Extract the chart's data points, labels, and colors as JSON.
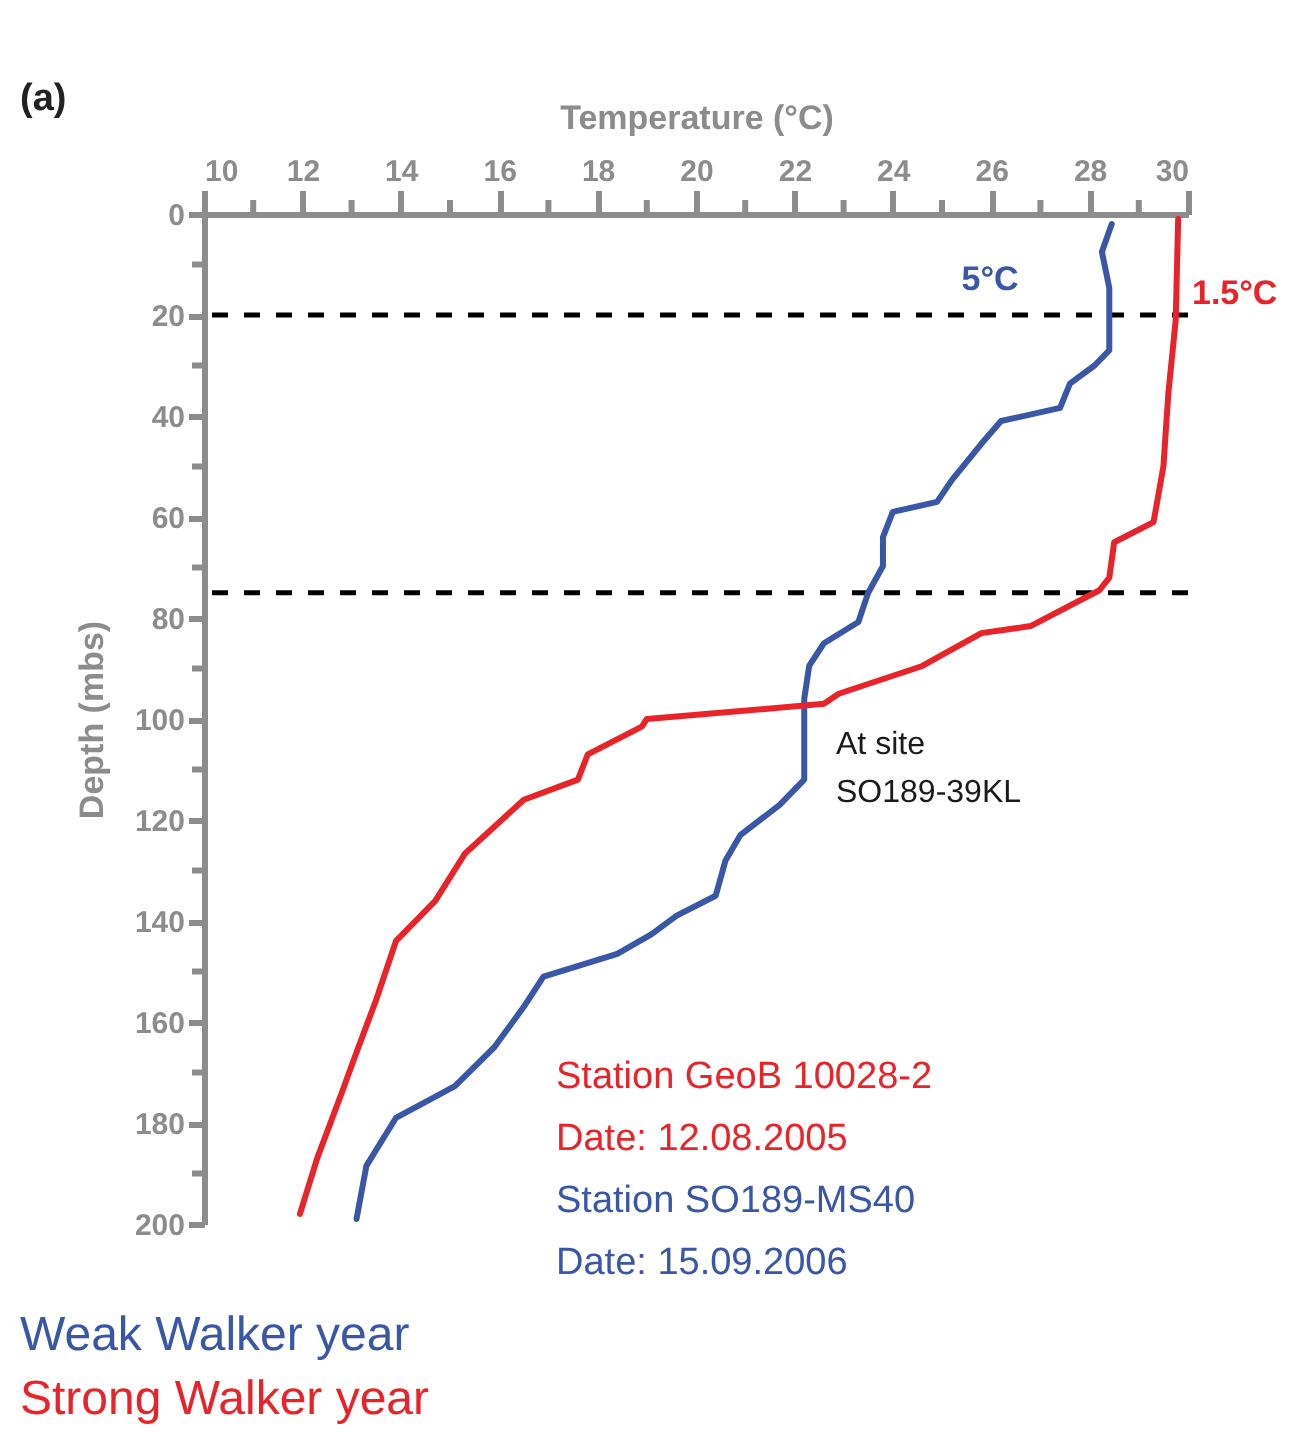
{
  "chart_data": {
    "type": "line",
    "title": "(a)",
    "xlabel": "Temperature (°C)",
    "ylabel": "Depth (mbs)",
    "xlim": [
      10,
      30
    ],
    "xticks": [
      10,
      {
        "value": 11,
        "label": null
      },
      12,
      {
        "value": 13,
        "label": null
      },
      14,
      {
        "value": 15,
        "label": null
      },
      16,
      {
        "value": 17,
        "label": null
      },
      18,
      {
        "value": 19,
        "label": null
      },
      20,
      {
        "value": 21,
        "label": null
      },
      22,
      {
        "value": 23,
        "label": null
      },
      24,
      {
        "value": 25,
        "label": null
      },
      26,
      {
        "value": 27,
        "label": null
      },
      28,
      {
        "value": 29,
        "label": null
      },
      30
    ],
    "ylim": [
      200,
      0
    ],
    "yticks": [
      0,
      {
        "value": 10,
        "label": null
      },
      20,
      {
        "value": 30,
        "label": null
      },
      40,
      {
        "value": 50,
        "label": null
      },
      60,
      {
        "value": 70,
        "label": null
      },
      80,
      {
        "value": 90,
        "label": null
      },
      100,
      {
        "value": 110,
        "label": null
      },
      120,
      {
        "value": 130,
        "label": null
      },
      140,
      {
        "value": 150,
        "label": null
      },
      160,
      {
        "value": 170,
        "label": null
      },
      180,
      {
        "value": 190,
        "label": null
      },
      200
    ],
    "grid": false,
    "line_style": "solid",
    "marker": "none",
    "series": [
      {
        "name": "Weak Walker year",
        "color": "#3a56a6",
        "x": [
          28.45,
          28.25,
          28.4,
          28.4,
          28.1,
          27.6,
          27.4,
          26.2,
          25.8,
          25.2,
          24.9,
          24.0,
          23.8,
          23.8,
          23.5,
          23.3,
          22.6,
          22.3,
          22.2,
          22.2,
          22.2,
          21.7,
          20.9,
          20.6,
          20.4,
          19.6,
          19.1,
          18.4,
          16.9,
          16.5,
          15.9,
          15.1,
          13.9,
          13.3,
          13.1
        ],
        "values": [
          2,
          7.5,
          14.6,
          27,
          30,
          33.6,
          38.4,
          41,
          45.5,
          52.7,
          57,
          59,
          64,
          69.7,
          75,
          80.8,
          85,
          89.5,
          96,
          100,
          112,
          117,
          123,
          128,
          135,
          139,
          142.6,
          146.5,
          151,
          157,
          165,
          172.7,
          179,
          188.5,
          199
        ]
      },
      {
        "name": "Strong Walker year",
        "color": "#e8242a",
        "x": [
          29.8,
          29.75,
          29.6,
          29.5,
          29.3,
          28.5,
          28.4,
          28.2,
          26.8,
          25.8,
          24.6,
          22.9,
          22.6,
          19.0,
          18.9,
          17.8,
          17.6,
          16.5,
          15.3,
          14.7,
          13.9,
          13.5,
          13.1,
          12.8,
          12.3,
          11.95
        ],
        "values": [
          1,
          21,
          35.6,
          50,
          61,
          65,
          72,
          74.5,
          81.6,
          83,
          89.5,
          95,
          97,
          100,
          101.5,
          107,
          112,
          116,
          126.7,
          136,
          144,
          155.6,
          166,
          174,
          187,
          198
        ]
      }
    ],
    "ref_lines": [
      {
        "axis": "y",
        "value": 20,
        "color": "#000000",
        "line_style": "dashed"
      },
      {
        "axis": "y",
        "value": 75,
        "color": "#000000",
        "line_style": "dashed"
      }
    ],
    "annotations": [
      "5°C",
      "1.5°C",
      "At site\nSO189-39KL",
      "Station GeoB 10028-2",
      "Date: 12.08.2005",
      "Station SO189-MS40",
      "Date: 15.09.2006"
    ]
  }
}
